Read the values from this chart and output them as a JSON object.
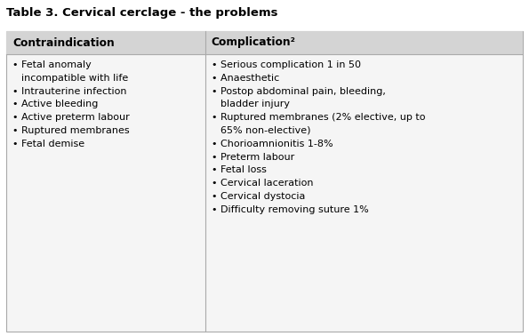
{
  "title": "Table 3. Cervical cerclage - the problems",
  "col1_header": "Contraindication",
  "col2_header": "Complication²",
  "col1_items": [
    "Fetal anomaly\n   incompatible with life",
    "Intrauterine infection",
    "Active bleeding",
    "Active preterm labour",
    "Ruptured membranes",
    "Fetal demise"
  ],
  "col2_items": [
    "Serious complication 1 in 50",
    "Anaesthetic",
    "Postop abdominal pain, bleeding,\n   bladder injury",
    "Ruptured membranes (2% elective, up to\n   65% non-elective)",
    "Chorioamnionitis 1-8%",
    "Preterm labour",
    "Fetal loss",
    "Cervical laceration",
    "Cervical dystocia",
    "Difficulty removing suture 1%"
  ],
  "header_bg": "#d4d4d4",
  "table_bg": "#f5f5f5",
  "white": "#ffffff",
  "border_color": "#aaaaaa",
  "title_fontsize": 9.5,
  "header_fontsize": 8.8,
  "body_fontsize": 8.0,
  "bullet": "•"
}
